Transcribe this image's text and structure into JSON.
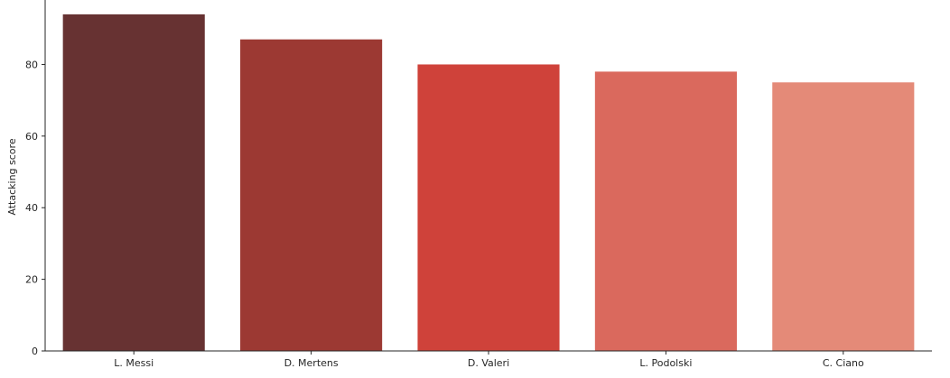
{
  "chart_data": {
    "type": "bar",
    "title": "",
    "xlabel": "",
    "ylabel": "Attacking score",
    "categories": [
      "L. Messi",
      "D. Mertens",
      "D. Valeri",
      "L. Podolski",
      "C. Ciano"
    ],
    "values": [
      94,
      87,
      80,
      78,
      75
    ],
    "colors": [
      "#673232",
      "#9c3933",
      "#cf423a",
      "#da695d",
      "#e48a78"
    ],
    "ylim": [
      0,
      98
    ],
    "yticks": [
      0,
      20,
      40,
      60,
      80
    ],
    "ytick_labels": [
      "0",
      "20",
      "40",
      "60",
      "80"
    ],
    "grid": false,
    "legend": "none"
  }
}
